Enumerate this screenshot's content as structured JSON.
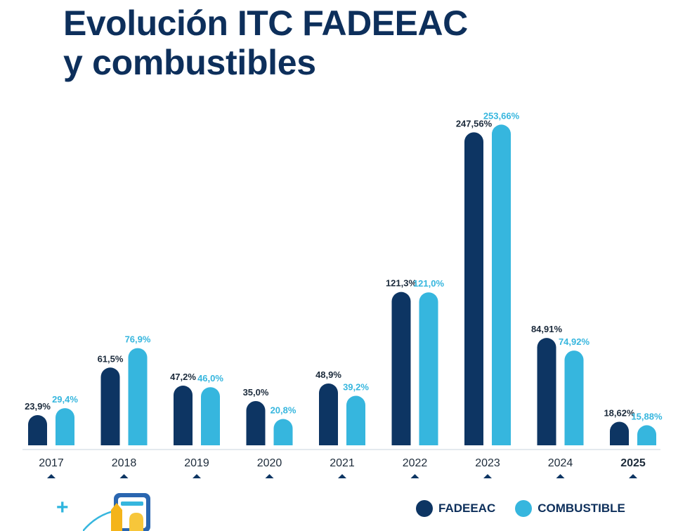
{
  "header": {
    "title_bold": "Evolución",
    "title_rest": "ITC FADEEAC",
    "title_line2": "y combustibles"
  },
  "legend": {
    "fadeeac_label": "FADEEAC",
    "combustible_label": "COMBUSTIBLE"
  },
  "colors": {
    "fadeeac": "#0d3563",
    "combustible": "#36b6de"
  },
  "chart_data": {
    "type": "bar",
    "title": "Evolución ITC FADEEAC y combustibles",
    "categories": [
      "2017",
      "2018",
      "2019",
      "2020",
      "2021",
      "2022",
      "2023",
      "2024",
      "2025"
    ],
    "highlight_category": "2025",
    "series": [
      {
        "name": "FADEEAC",
        "values": [
          23.9,
          61.5,
          47.2,
          35.0,
          48.9,
          121.3,
          247.56,
          84.91,
          18.62
        ],
        "labels": [
          "23,9%",
          "61,5%",
          "47,2%",
          "35,0%",
          "48,9%",
          "121,3%",
          "247,56%",
          "84,91%",
          "18,62%"
        ]
      },
      {
        "name": "COMBUSTIBLE",
        "values": [
          29.4,
          76.9,
          46.0,
          20.8,
          39.2,
          121.0,
          253.66,
          74.92,
          15.88
        ],
        "labels": [
          "29,4%",
          "76,9%",
          "46,0%",
          "20,8%",
          "39,2%",
          "121,0%",
          "253,66%",
          "74,92%",
          "15,88%"
        ]
      }
    ],
    "ylim": [
      0,
      260
    ],
    "grid": false,
    "legend_position": "bottom-right"
  }
}
